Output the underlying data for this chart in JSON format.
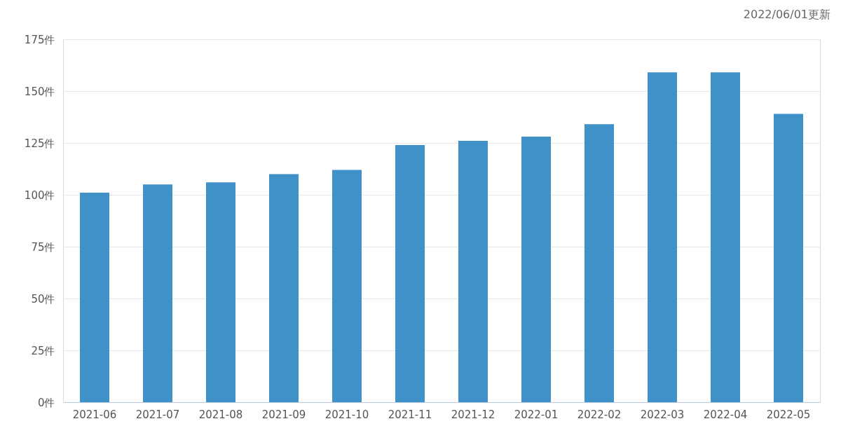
{
  "chart_data": {
    "type": "bar",
    "categories": [
      "2021-06",
      "2021-07",
      "2021-08",
      "2021-09",
      "2021-10",
      "2021-11",
      "2021-12",
      "2022-01",
      "2022-02",
      "2022-03",
      "2022-04",
      "2022-05"
    ],
    "values": [
      101,
      105,
      106,
      110,
      112,
      124,
      126,
      128,
      134,
      159,
      159,
      139
    ],
    "color": "#3a8dc5",
    "ylim": [
      0,
      175
    ],
    "yticks": [
      {
        "value": 0,
        "label": "0件"
      },
      {
        "value": 25,
        "label": "25件"
      },
      {
        "value": 50,
        "label": "50件"
      },
      {
        "value": 75,
        "label": "75件"
      },
      {
        "value": 100,
        "label": "100件"
      },
      {
        "value": 125,
        "label": "125件"
      },
      {
        "value": 150,
        "label": "150件"
      },
      {
        "value": 175,
        "label": "175件"
      }
    ],
    "grid": "y",
    "annotations": [
      "2022/06/01更新"
    ]
  }
}
